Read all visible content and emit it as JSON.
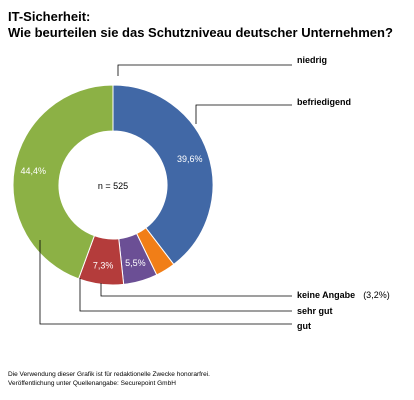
{
  "chart_data": {
    "type": "pie",
    "title": "IT-Sicherheit:",
    "subtitle": "Wie beurteilen sie das Schutzniveau deutscher Unternehmen?",
    "center_label": "n = 525",
    "slices": [
      {
        "label": "befriedigend",
        "value": 39.6,
        "value_label": "39,6%",
        "color": "#4168a6"
      },
      {
        "label": "keine Angabe",
        "value": 3.2,
        "value_label": "",
        "note": "(3,2%)",
        "color": "#f17e17"
      },
      {
        "label": "sehr gut",
        "value": 5.5,
        "value_label": "5,5%",
        "color": "#6b4f95"
      },
      {
        "label": "gut",
        "value": 7.3,
        "value_label": "7,3%",
        "color": "#b43c3b"
      },
      {
        "label": "niedrig",
        "value": 44.4,
        "value_label": "44,4%",
        "color": "#8cb145"
      }
    ]
  },
  "footer": {
    "line1": "Die Verwendung dieser Grafik ist für redaktionelle Zwecke honorarfrei.",
    "line2": "Veröffentlichung unter Quellenangabe: Securepoint GmbH"
  }
}
